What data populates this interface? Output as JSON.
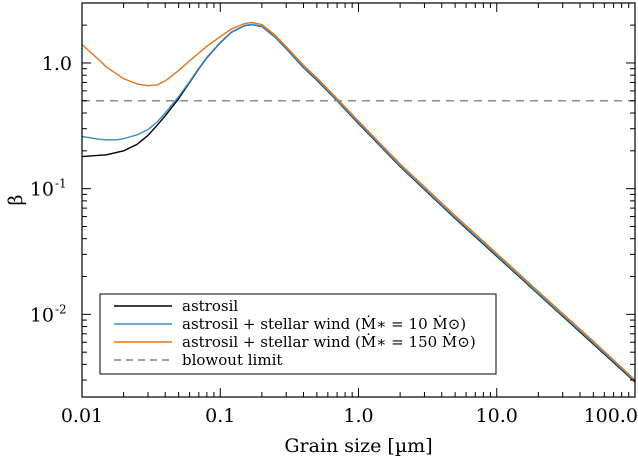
{
  "chart_data": {
    "type": "line",
    "xlabel": "Grain size [µm]",
    "ylabel": "β",
    "xscale": "log",
    "yscale": "log",
    "xlim": [
      0.01,
      100.0
    ],
    "ylim": [
      0.0022,
      3.0
    ],
    "grid": false,
    "legend_position": "bottom-left",
    "x_tick_labels": [
      {
        "value": 0.01,
        "label": "0.01"
      },
      {
        "value": 0.1,
        "label": "0.1"
      },
      {
        "value": 1.0,
        "label": "1.0"
      },
      {
        "value": 10.0,
        "label": "10.0"
      },
      {
        "value": 100.0,
        "label": "100.0"
      }
    ],
    "y_tick_labels": [
      {
        "value": 1.0,
        "label": "1.0",
        "mantissa": "1.0",
        "exp": ""
      },
      {
        "value": 0.1,
        "label": "10-1",
        "mantissa": "10",
        "exp": "-1"
      },
      {
        "value": 0.01,
        "label": "10-2",
        "mantissa": "10",
        "exp": "-2"
      }
    ],
    "series": [
      {
        "name": "astrosil",
        "color": "#000000",
        "dash": "solid",
        "x": [
          0.01,
          0.015,
          0.02,
          0.025,
          0.03,
          0.035,
          0.04,
          0.05,
          0.06,
          0.07,
          0.08,
          0.1,
          0.12,
          0.15,
          0.17,
          0.2,
          0.25,
          0.3,
          0.4,
          0.5,
          0.7,
          1.0,
          2.0,
          5.0,
          10.0,
          20.0,
          50.0,
          100.0
        ],
        "y": [
          0.18,
          0.186,
          0.2,
          0.225,
          0.265,
          0.32,
          0.38,
          0.52,
          0.7,
          0.9,
          1.1,
          1.45,
          1.75,
          1.98,
          2.02,
          1.95,
          1.6,
          1.3,
          0.92,
          0.73,
          0.5,
          0.33,
          0.15,
          0.058,
          0.029,
          0.0145,
          0.0058,
          0.0029
        ]
      },
      {
        "name": "astrosil + stellar wind (Ṁ∗ =   10 Ṁ⊙)",
        "color": "#3a8fc8",
        "dash": "solid",
        "x": [
          0.01,
          0.013,
          0.015,
          0.018,
          0.02,
          0.025,
          0.03,
          0.035,
          0.04,
          0.05,
          0.06,
          0.07,
          0.08,
          0.1,
          0.12,
          0.15,
          0.17,
          0.2,
          0.25,
          0.3,
          0.4,
          0.5,
          0.7,
          1.0,
          2.0,
          5.0,
          10.0,
          20.0,
          50.0,
          100.0
        ],
        "y": [
          0.26,
          0.248,
          0.244,
          0.245,
          0.25,
          0.268,
          0.295,
          0.34,
          0.4,
          0.54,
          0.71,
          0.91,
          1.11,
          1.46,
          1.76,
          1.99,
          2.03,
          1.96,
          1.61,
          1.31,
          0.93,
          0.74,
          0.505,
          0.335,
          0.152,
          0.059,
          0.0295,
          0.0147,
          0.0059,
          0.00295
        ]
      },
      {
        "name": "astrosil + stellar wind (Ṁ∗ =   150 Ṁ⊙)",
        "color": "#e8731a",
        "dash": "solid",
        "x": [
          0.01,
          0.013,
          0.015,
          0.02,
          0.025,
          0.03,
          0.035,
          0.04,
          0.05,
          0.06,
          0.07,
          0.08,
          0.1,
          0.12,
          0.15,
          0.17,
          0.2,
          0.25,
          0.3,
          0.4,
          0.5,
          0.7,
          1.0,
          2.0,
          5.0,
          10.0,
          20.0,
          50.0,
          100.0
        ],
        "y": [
          1.4,
          1.08,
          0.93,
          0.75,
          0.68,
          0.66,
          0.67,
          0.72,
          0.87,
          1.04,
          1.2,
          1.36,
          1.62,
          1.86,
          2.06,
          2.1,
          2.02,
          1.66,
          1.35,
          0.96,
          0.76,
          0.52,
          0.345,
          0.157,
          0.061,
          0.0305,
          0.0152,
          0.0061,
          0.003
        ]
      },
      {
        "name": "blowout limit",
        "color": "#808080",
        "dash": "dashed",
        "x": [
          0.01,
          100.0
        ],
        "y": [
          0.5,
          0.5
        ]
      }
    ]
  }
}
